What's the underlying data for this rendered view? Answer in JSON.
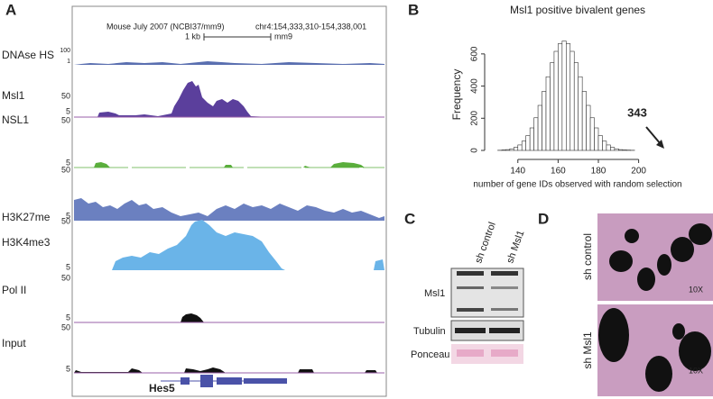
{
  "panels": {
    "A": {
      "label": "A",
      "header": {
        "assembly": "Mouse July 2007 (NCBI37/mm9)",
        "position": "chr4:154,333,310-154,338,001",
        "scale": "1 kb",
        "genome": "mm9"
      },
      "tracks": [
        {
          "name": "DNAse HS",
          "scale_top": 100,
          "scale_bottom": 1,
          "color": "#5a6fb0"
        },
        {
          "name": "Msl1",
          "scale_top": 50,
          "scale_bottom": 5,
          "color": "#5b3f9c"
        },
        {
          "name": "NSL1",
          "scale_top": 50,
          "scale_bottom": 5,
          "color": "#5aae3c"
        },
        {
          "name": "H3K27me",
          "scale_top": 50,
          "scale_bottom": 5,
          "color": "#6b80c0"
        },
        {
          "name": "H3K4me3",
          "scale_top": 50,
          "scale_bottom": 5,
          "color": "#6ab4e8"
        },
        {
          "name": "Pol II",
          "scale_top": 50,
          "scale_bottom": 5,
          "color": "#111111"
        },
        {
          "name": "Input",
          "scale_top": 50,
          "scale_bottom": 5,
          "color": "#111111"
        }
      ],
      "gene": "Hes5"
    },
    "B": {
      "label": "B"
    },
    "C": {
      "label": "C",
      "lanes": [
        "sh control",
        "sh Msl1"
      ],
      "blots": [
        "Msl1",
        "Tubulin",
        "Ponceau"
      ]
    },
    "D": {
      "label": "D",
      "rows": [
        "sh control",
        "sh Msl1"
      ],
      "magnification": [
        "10X",
        "10X"
      ]
    }
  },
  "chart_data": {
    "type": "histogram",
    "title": "Msl1 positive bivalent genes",
    "x_label": "number of gene IDs observed with random selection",
    "y_label": "Frequency",
    "bins": [
      130,
      132,
      134,
      136,
      138,
      140,
      142,
      144,
      146,
      148,
      150,
      152,
      154,
      156,
      158,
      160,
      162,
      164,
      166,
      168,
      170,
      172,
      174,
      176,
      178,
      180,
      182,
      184,
      186,
      188,
      190,
      192,
      194,
      196,
      198,
      200
    ],
    "values": [
      1,
      3,
      5,
      10,
      19,
      34,
      58,
      92,
      140,
      203,
      280,
      367,
      458,
      545,
      616,
      664,
      680,
      664,
      616,
      545,
      458,
      367,
      280,
      203,
      140,
      92,
      58,
      34,
      19,
      10,
      5,
      3,
      2,
      1,
      0
    ],
    "color": "#ffffff",
    "edge_color": "#333333",
    "xlim": [
      128,
      206
    ],
    "ylim": [
      0,
      700
    ],
    "xticks": [
      140,
      160,
      180,
      200
    ],
    "yticks": [
      0,
      200,
      400,
      600
    ],
    "annotation": "343"
  }
}
